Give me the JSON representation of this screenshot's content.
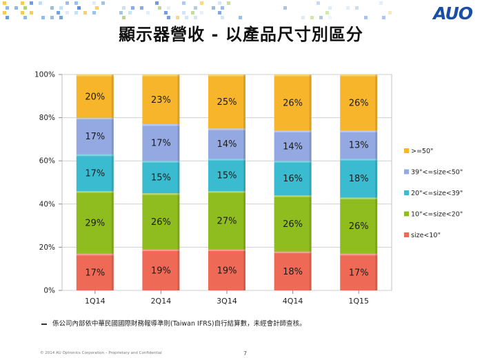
{
  "logo": "AUO",
  "title": "顯示器營收 - 以產品尺寸別區分",
  "footnote": "係公司內部依中華民國國際財務報導準則(Taiwan IFRS)自行結算數，未經會計師查核。",
  "copyright": "© 2014 AU Optronics Corporation – Proprietary and Confidential",
  "page_number": "7",
  "colors": {
    "size_lt_10": "#ee6a56",
    "10_to_20": "#8fbc1e",
    "20_to_39": "#3bbbcf",
    "39_to_50": "#94a9e2",
    "gte_50": "#f7b52c"
  },
  "chart_data": {
    "type": "bar",
    "stacked": true,
    "title": "",
    "xlabel": "",
    "ylabel": "",
    "ylim": [
      0,
      100
    ],
    "yticks": [
      "0%",
      "20%",
      "40%",
      "60%",
      "80%",
      "100%"
    ],
    "categories": [
      "1Q14",
      "2Q14",
      "3Q14",
      "4Q14",
      "1Q15"
    ],
    "legend_position": "right",
    "series": [
      {
        "name": "size<10\"",
        "color": "#ee6a56",
        "values": [
          17,
          19,
          19,
          18,
          17
        ],
        "labels": [
          "17%",
          "19%",
          "19%",
          "18%",
          "17%"
        ]
      },
      {
        "name": "10\"<=size<20\"",
        "color": "#8fbc1e",
        "values": [
          29,
          26,
          27,
          26,
          26
        ],
        "labels": [
          "29%",
          "26%",
          "27%",
          "26%",
          "26%"
        ]
      },
      {
        "name": "20\"<=size<39\"",
        "color": "#3bbbcf",
        "values": [
          17,
          15,
          15,
          16,
          18
        ],
        "labels": [
          "17%",
          "15%",
          "15%",
          "16%",
          "18%"
        ]
      },
      {
        "name": "39\"<=size<50\"",
        "color": "#94a9e2",
        "values": [
          17,
          17,
          14,
          14,
          13
        ],
        "labels": [
          "17%",
          "17%",
          "14%",
          "14%",
          "13%"
        ]
      },
      {
        "name": ">=50\"",
        "color": "#f7b52c",
        "values": [
          20,
          23,
          25,
          26,
          26
        ],
        "labels": [
          "20%",
          "23%",
          "25%",
          "26%",
          "26%"
        ]
      }
    ]
  }
}
